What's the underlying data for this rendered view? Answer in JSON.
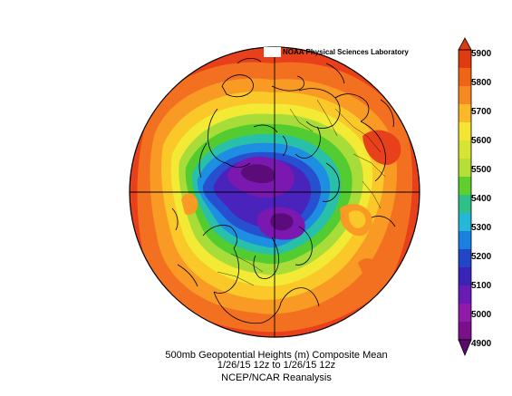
{
  "credit": "NOAA Physical Sciences Laboratory",
  "caption": {
    "line1": "500mb Geopotential Heights (m)   Composite Mean",
    "line2": "1/26/15 12z  to 1/26/15 12z",
    "line3": "NCEP/NCAR Reanalysis"
  },
  "colorbar": {
    "labels": [
      "5900",
      "5800",
      "5700",
      "5600",
      "5500",
      "5400",
      "5300",
      "5200",
      "5100",
      "5000",
      "4900"
    ],
    "colors": [
      "#e03a10",
      "#f06418",
      "#f68a20",
      "#fbb828",
      "#f3e632",
      "#b5df37",
      "#5fcf2d",
      "#2fc08a",
      "#23b8d8",
      "#1b7fe0",
      "#2147c8",
      "#3a24b8",
      "#6a1ab5",
      "#901ba8",
      "#7a0f8a",
      "#5a0a6a"
    ]
  },
  "map": {
    "colors": {
      "outer": "#e8401a",
      "band1": "#f27020",
      "band2": "#f89a24",
      "band3": "#fbc82a",
      "band4": "#f2ea34",
      "band5": "#a8dc38",
      "band6": "#52cc30",
      "band7": "#28c0a8",
      "band8": "#1e8ee2",
      "band9": "#2650d0",
      "band10": "#4a22bc",
      "band11": "#7a18b0",
      "band12": "#5c0c7a"
    }
  }
}
